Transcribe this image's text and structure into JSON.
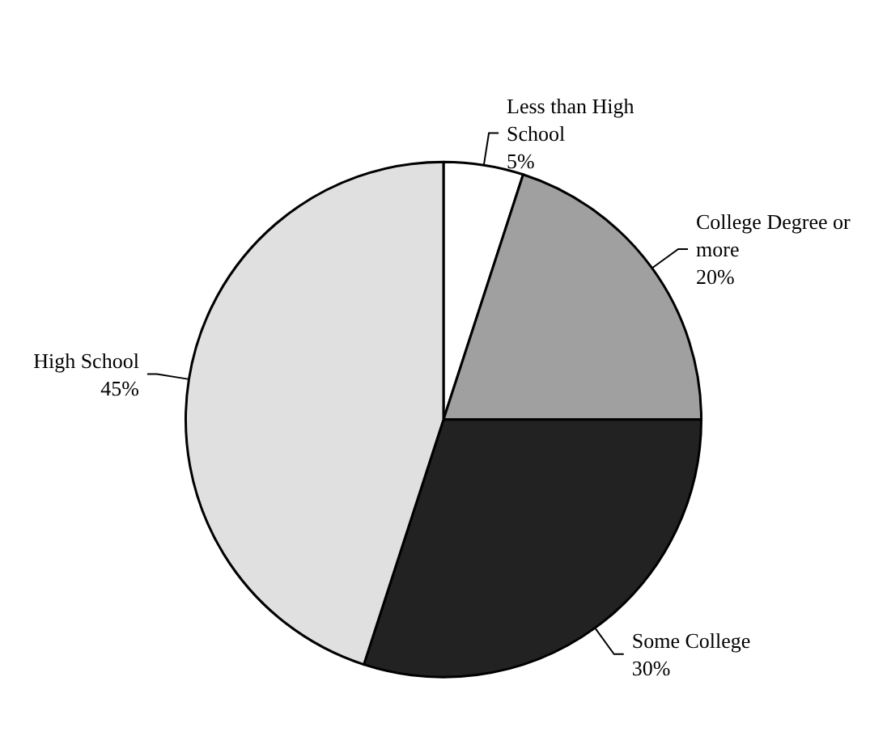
{
  "chart_data": {
    "type": "pie",
    "categories": [
      "Less than High School",
      "College Degree or more",
      "Some College",
      "High School"
    ],
    "values": [
      5,
      20,
      30,
      45
    ],
    "colors": [
      "#ffffff",
      "#a0a0a0",
      "#222222",
      "#e0e0e0"
    ],
    "value_labels": [
      "5%",
      "20%",
      "30%",
      "45%"
    ],
    "legend": false
  }
}
